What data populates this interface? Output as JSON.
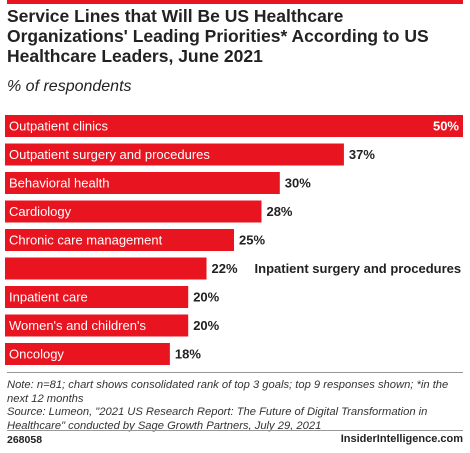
{
  "colors": {
    "accent": "#e8141f",
    "bar_label_inside": "#ffffff",
    "text": "#222222"
  },
  "header": {
    "title": "Service Lines that Will Be US Healthcare Organizations' Leading Priorities* According to US Healthcare Leaders, June 2021",
    "subtitle": "% of respondents"
  },
  "chart_data": {
    "type": "bar",
    "orientation": "horizontal",
    "categories": [
      "Outpatient clinics",
      "Outpatient surgery and procedures",
      "Behavioral health",
      "Cardiology",
      "Chronic care management",
      "Inpatient surgery and procedures",
      "Inpatient care",
      "Women's and children's",
      "Oncology"
    ],
    "values": [
      50,
      37,
      30,
      28,
      25,
      22,
      20,
      20,
      18
    ],
    "value_labels": [
      "50%",
      "37%",
      "30%",
      "28%",
      "25%",
      "22%",
      "20%",
      "20%",
      "18%"
    ],
    "xlim": [
      0,
      50
    ],
    "grid": false,
    "legend": "none"
  },
  "footer": {
    "note": "Note: n=81; chart shows consolidated rank of top 3 goals; top 9 responses shown; *in the next 12 months",
    "source": "Source: Lumeon, \"2021 US Research Report: The Future of Digital Transformation in Healthcare\" conducted by Sage Growth Partners, July 29, 2021",
    "chart_id": "268058",
    "brand": "InsiderIntelligence.com"
  }
}
